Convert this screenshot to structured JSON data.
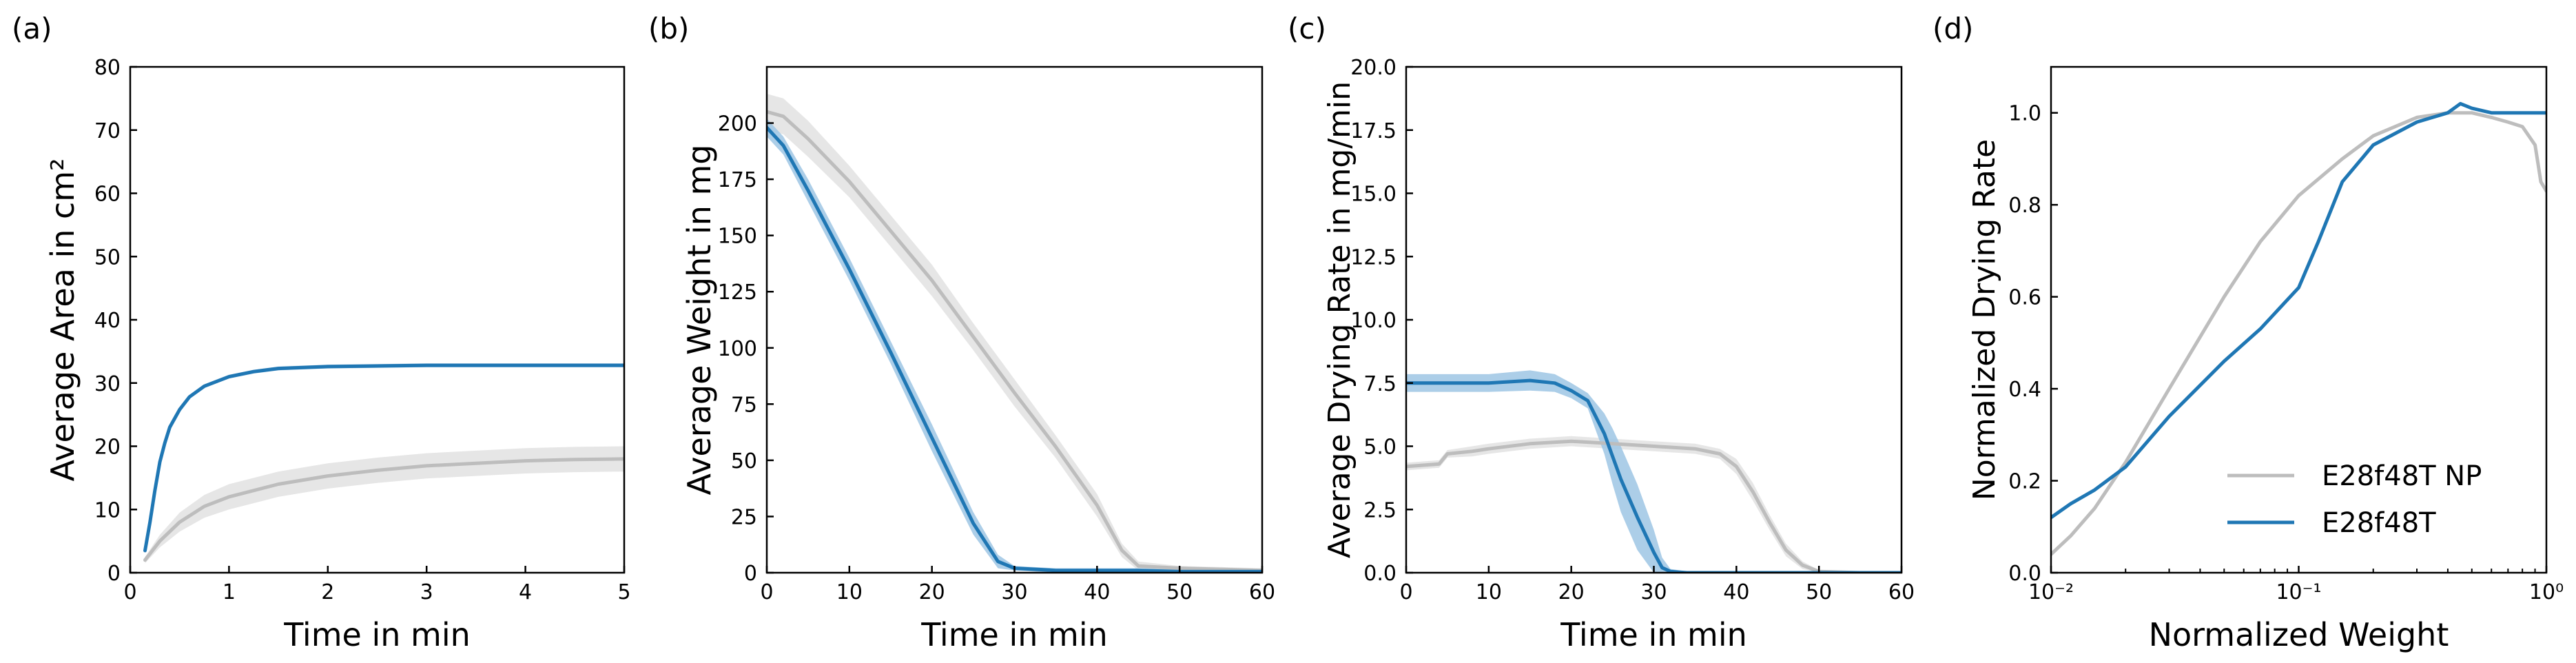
{
  "colors": {
    "blue": "#1f77b4",
    "blue_band": "#9ec5e4",
    "gray": "#bdbdbd",
    "gray_band": "#e2e2e2",
    "axis": "#000000"
  },
  "chart_data": [
    {
      "panel": "(a)",
      "type": "line",
      "xlabel": "Time in min",
      "ylabel": "Average Area in cm²",
      "xlim": [
        0,
        5
      ],
      "ylim": [
        0,
        80
      ],
      "xscale": "linear",
      "xticks": [
        0,
        1,
        2,
        3,
        4,
        5
      ],
      "yticks": [
        0,
        10,
        20,
        30,
        40,
        50,
        60,
        70,
        80
      ],
      "xtick_labels": [
        "0",
        "1",
        "2",
        "3",
        "4",
        "5"
      ],
      "ytick_labels": [
        "0",
        "10",
        "20",
        "30",
        "40",
        "50",
        "60",
        "70",
        "80"
      ],
      "series": [
        {
          "name": "E28f48T NP",
          "color": "gray",
          "x": [
            0.15,
            0.3,
            0.5,
            0.75,
            1,
            1.5,
            2,
            2.5,
            3,
            3.5,
            4,
            4.5,
            5
          ],
          "y": [
            2,
            5,
            8,
            10.5,
            12,
            14,
            15.3,
            16.2,
            16.9,
            17.3,
            17.7,
            17.9,
            18
          ],
          "band": [
            0.5,
            1,
            1.5,
            1.8,
            2,
            2,
            2,
            2,
            2,
            2,
            2,
            2,
            2
          ]
        },
        {
          "name": "E28f48T",
          "color": "blue",
          "x": [
            0.15,
            0.2,
            0.25,
            0.3,
            0.35,
            0.4,
            0.5,
            0.6,
            0.75,
            1,
            1.25,
            1.5,
            2,
            2.5,
            3,
            4,
            5
          ],
          "y": [
            3.5,
            8,
            13,
            17.5,
            20.5,
            23,
            25.8,
            27.8,
            29.5,
            31,
            31.8,
            32.3,
            32.6,
            32.7,
            32.8,
            32.8,
            32.8
          ],
          "band": [
            0.3,
            0.3,
            0.3,
            0.3,
            0.3,
            0.3,
            0.3,
            0.3,
            0.3,
            0.3,
            0.3,
            0.3,
            0.3,
            0.3,
            0.3,
            0.3,
            0.3
          ]
        }
      ]
    },
    {
      "panel": "(b)",
      "type": "line",
      "xlabel": "Time in min",
      "ylabel": "Average Weight in mg",
      "xlim": [
        0,
        60
      ],
      "ylim": [
        0,
        225
      ],
      "xscale": "linear",
      "xticks": [
        0,
        10,
        20,
        30,
        40,
        50,
        60
      ],
      "yticks": [
        0,
        25,
        50,
        75,
        100,
        125,
        150,
        175,
        200
      ],
      "xtick_labels": [
        "0",
        "10",
        "20",
        "30",
        "40",
        "50",
        "60"
      ],
      "ytick_labels": [
        "0",
        "25",
        "50",
        "75",
        "100",
        "125",
        "150",
        "175",
        "200"
      ],
      "series": [
        {
          "name": "E28f48T NP",
          "color": "gray",
          "x": [
            0,
            2,
            5,
            10,
            15,
            20,
            25,
            30,
            35,
            40,
            43,
            45,
            50,
            55,
            60
          ],
          "y": [
            205,
            203,
            193,
            174,
            152,
            130,
            105,
            80,
            56,
            30,
            10,
            3,
            2,
            1.5,
            1
          ],
          "band": [
            8,
            8,
            8,
            7,
            7,
            7,
            6,
            6,
            5,
            5,
            3,
            2,
            1,
            1,
            1
          ]
        },
        {
          "name": "E28f48T",
          "color": "blue",
          "x": [
            0,
            2,
            5,
            10,
            15,
            20,
            25,
            28,
            30,
            35,
            40,
            45,
            50,
            55,
            60
          ],
          "y": [
            198,
            190,
            170,
            135,
            98,
            60,
            22,
            5,
            2,
            1,
            1,
            1,
            0.5,
            0.5,
            0.5
          ],
          "band": [
            4,
            4,
            5,
            5,
            5,
            6,
            5,
            3,
            1,
            1,
            1,
            1,
            1,
            1,
            1
          ]
        }
      ]
    },
    {
      "panel": "(c)",
      "type": "line",
      "xlabel": "Time in min",
      "ylabel": "Average Drying Rate in mg/min",
      "xlim": [
        0,
        60
      ],
      "ylim": [
        0,
        20
      ],
      "xscale": "linear",
      "xticks": [
        0,
        10,
        20,
        30,
        40,
        50,
        60
      ],
      "yticks": [
        0,
        2.5,
        5,
        7.5,
        10,
        12.5,
        15,
        17.5,
        20
      ],
      "xtick_labels": [
        "0",
        "10",
        "20",
        "30",
        "40",
        "50",
        "60"
      ],
      "ytick_labels": [
        "0.0",
        "2.5",
        "5.0",
        "7.5",
        "10.0",
        "12.5",
        "15.0",
        "17.5",
        "20.0"
      ],
      "series": [
        {
          "name": "E28f48T NP",
          "color": "gray",
          "x": [
            0,
            4,
            5,
            8,
            10,
            15,
            20,
            25,
            30,
            35,
            38,
            40,
            42,
            44,
            46,
            48,
            50,
            55,
            60
          ],
          "y": [
            4.2,
            4.3,
            4.7,
            4.8,
            4.9,
            5.1,
            5.2,
            5.1,
            5.0,
            4.9,
            4.7,
            4.2,
            3.2,
            2.0,
            0.9,
            0.3,
            0.05,
            0,
            0
          ],
          "band": [
            0.15,
            0.15,
            0.15,
            0.2,
            0.2,
            0.2,
            0.2,
            0.2,
            0.2,
            0.2,
            0.2,
            0.3,
            0.35,
            0.3,
            0.25,
            0.15,
            0.05,
            0.05,
            0.05
          ]
        },
        {
          "name": "E28f48T",
          "color": "blue",
          "x": [
            0,
            5,
            10,
            15,
            18,
            20,
            22,
            24,
            25,
            26,
            28,
            30,
            31,
            32,
            34,
            40,
            50,
            60
          ],
          "y": [
            7.5,
            7.5,
            7.5,
            7.6,
            7.5,
            7.2,
            6.8,
            5.5,
            4.6,
            3.7,
            2.2,
            0.8,
            0.2,
            0.05,
            0,
            0,
            0,
            0
          ],
          "band": [
            0.35,
            0.35,
            0.35,
            0.4,
            0.35,
            0.3,
            0.3,
            0.8,
            1.1,
            1.3,
            1.3,
            0.9,
            0.4,
            0.1,
            0.05,
            0.05,
            0.05,
            0.05
          ]
        }
      ]
    },
    {
      "panel": "(d)",
      "type": "line",
      "xlabel": "Normalized Weight",
      "ylabel": "Normalized Drying Rate",
      "xlim": [
        0.01,
        1
      ],
      "ylim": [
        0,
        1.1
      ],
      "xscale": "log",
      "xticks": [
        0.01,
        0.1,
        1
      ],
      "yticks": [
        0,
        0.2,
        0.4,
        0.6,
        0.8,
        1.0
      ],
      "xtick_labels": [
        "10⁻²",
        "10⁻¹",
        "10⁰"
      ],
      "ytick_labels": [
        "0.0",
        "0.2",
        "0.4",
        "0.6",
        "0.8",
        "1.0"
      ],
      "legend": {
        "location": "lower right",
        "entries": [
          "E28f48T NP",
          "E28f48T"
        ]
      },
      "series": [
        {
          "name": "E28f48T NP",
          "color": "gray",
          "x": [
            0.01,
            0.012,
            0.015,
            0.02,
            0.03,
            0.05,
            0.07,
            0.1,
            0.15,
            0.2,
            0.3,
            0.4,
            0.5,
            0.6,
            0.7,
            0.8,
            0.9,
            0.95,
            1.0
          ],
          "y": [
            0.04,
            0.08,
            0.14,
            0.24,
            0.4,
            0.6,
            0.72,
            0.82,
            0.9,
            0.95,
            0.99,
            1.0,
            1.0,
            0.99,
            0.98,
            0.97,
            0.93,
            0.85,
            0.83
          ]
        },
        {
          "name": "E28f48T",
          "color": "blue",
          "x": [
            0.01,
            0.012,
            0.015,
            0.02,
            0.03,
            0.05,
            0.07,
            0.1,
            0.12,
            0.15,
            0.2,
            0.3,
            0.4,
            0.45,
            0.5,
            0.6,
            0.7,
            0.8,
            0.9,
            1.0
          ],
          "y": [
            0.12,
            0.15,
            0.18,
            0.23,
            0.34,
            0.46,
            0.53,
            0.62,
            0.72,
            0.85,
            0.93,
            0.98,
            1.0,
            1.02,
            1.01,
            1.0,
            1.0,
            1.0,
            1.0,
            1.0
          ]
        }
      ]
    }
  ]
}
